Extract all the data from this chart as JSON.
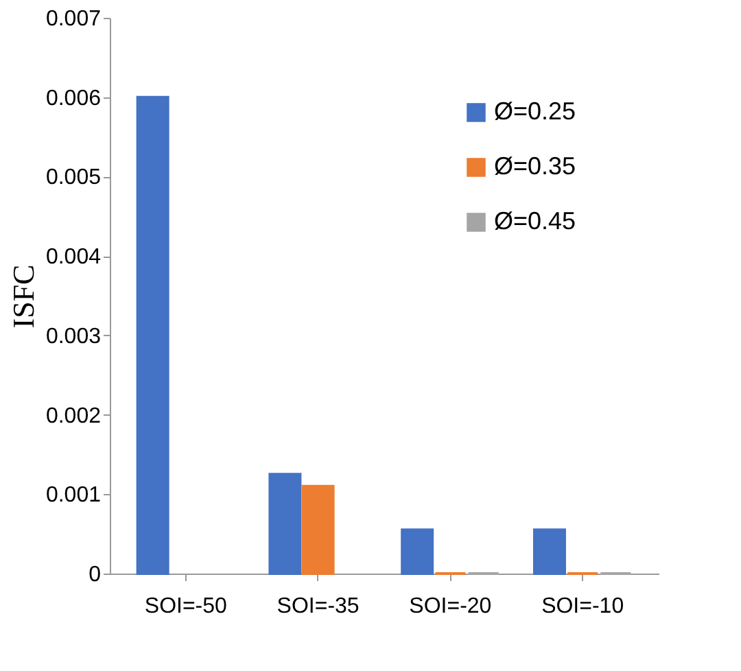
{
  "chart_data": {
    "type": "bar",
    "ylabel": "ISFC",
    "categories": [
      "SOI=-50",
      "SOI=-35",
      "SOI=-20",
      "SOI=-10"
    ],
    "series": [
      {
        "name": "Ø=0.25",
        "color": "#4472c4",
        "values": [
          0.006,
          0.00125,
          0.00055,
          0.00055
        ]
      },
      {
        "name": "Ø=0.35",
        "color": "#ed7d31",
        "values": [
          null,
          0.0011,
          0,
          0
        ]
      },
      {
        "name": "Ø=0.45",
        "color": "#a5a5a5",
        "values": [
          null,
          null,
          0,
          0
        ]
      }
    ],
    "ylim": [
      0,
      0.007
    ],
    "yticks": [
      0,
      0.001,
      0.002,
      0.003,
      0.004,
      0.005,
      0.006,
      0.007
    ],
    "grid": false,
    "legend": "top right"
  }
}
